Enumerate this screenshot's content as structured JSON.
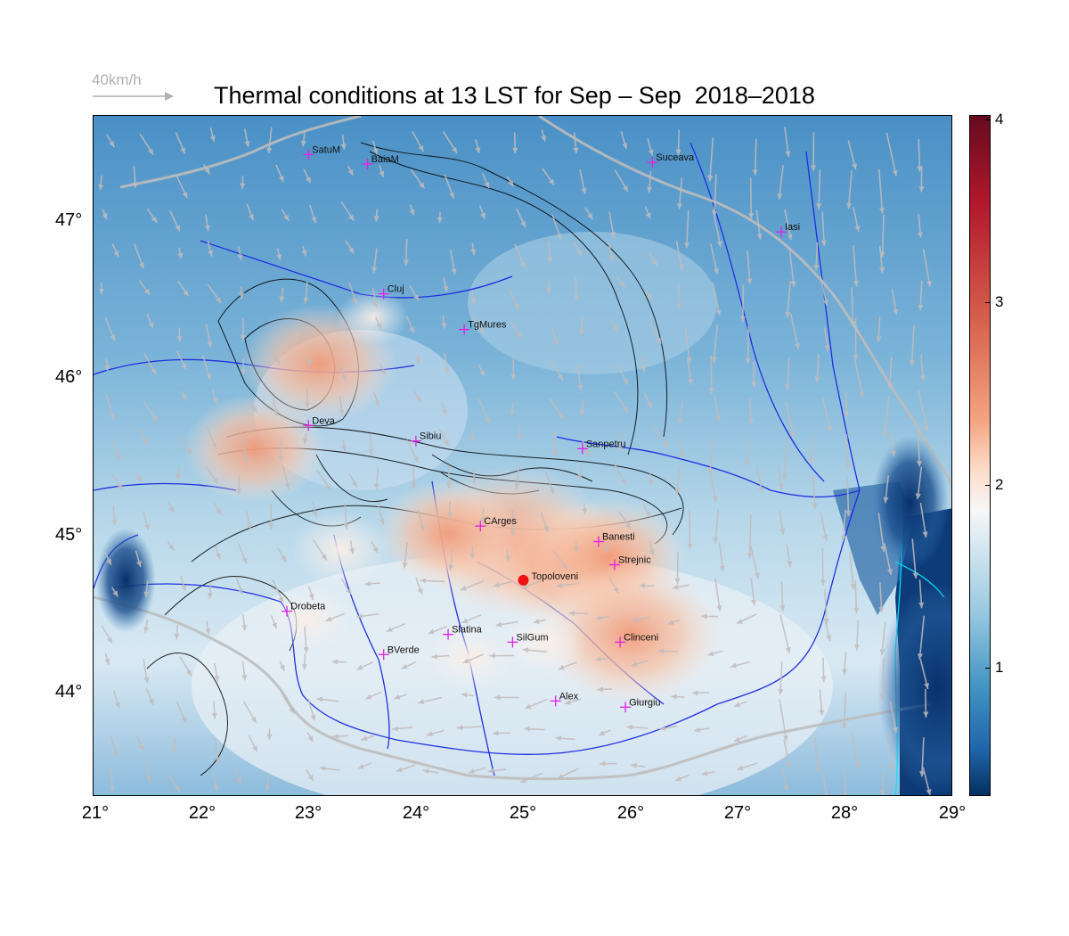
{
  "title": "Thermal conditions at 13 LST for Sep – Sep  2018–2018",
  "wind_scale": {
    "label": "40km/h",
    "color": "#b0b0b0"
  },
  "axes": {
    "lon_ticks": [
      "21°",
      "22°",
      "23°",
      "24°",
      "25°",
      "26°",
      "27°",
      "28°",
      "29°"
    ],
    "lat_ticks": [
      "47°",
      "46°",
      "45°",
      "44°"
    ]
  },
  "colorbar": {
    "ticks": [
      "4",
      "3",
      "2",
      "1"
    ],
    "colormap": "RdBu reversed",
    "colors": {
      "max": "#670a1f",
      "mid": "#f7f7f7",
      "min": "#053061"
    }
  },
  "map": {
    "region": "Romania",
    "lon_range": [
      21,
      29
    ],
    "lat_range": [
      43.3,
      47.7
    ],
    "river_color": "#1f2fe0",
    "border_color": "#bcbcbc",
    "contour_color": "#000000",
    "coast_color": "#00e5ff",
    "station_marker_color": "#e61ee6",
    "highlight_marker_color": "#ee1111"
  },
  "stations": [
    {
      "name": "SatuM",
      "lon": 23.0,
      "lat": 47.45
    },
    {
      "name": "BaiaM",
      "lon": 23.55,
      "lat": 47.39
    },
    {
      "name": "Suceava",
      "lon": 26.2,
      "lat": 47.4
    },
    {
      "name": "Iasi",
      "lon": 27.4,
      "lat": 46.95
    },
    {
      "name": "Cluj",
      "lon": 23.7,
      "lat": 46.55
    },
    {
      "name": "TgMures",
      "lon": 24.45,
      "lat": 46.32
    },
    {
      "name": "Deva",
      "lon": 23.0,
      "lat": 45.7
    },
    {
      "name": "Sibiu",
      "lon": 24.0,
      "lat": 45.6
    },
    {
      "name": "Sanpetru",
      "lon": 25.55,
      "lat": 45.55
    },
    {
      "name": "CArges",
      "lon": 24.6,
      "lat": 45.05
    },
    {
      "name": "Banesti",
      "lon": 25.7,
      "lat": 44.95
    },
    {
      "name": "Strejnic",
      "lon": 25.85,
      "lat": 44.8
    },
    {
      "name": "Drobeta",
      "lon": 22.8,
      "lat": 44.5
    },
    {
      "name": "Slatina",
      "lon": 24.3,
      "lat": 44.35
    },
    {
      "name": "SilGum",
      "lon": 24.9,
      "lat": 44.3
    },
    {
      "name": "Clinceni",
      "lon": 25.9,
      "lat": 44.3
    },
    {
      "name": "BVerde",
      "lon": 23.7,
      "lat": 44.22
    },
    {
      "name": "Alex",
      "lon": 25.3,
      "lat": 43.92
    },
    {
      "name": "Giurgiu",
      "lon": 25.95,
      "lat": 43.88
    }
  ],
  "highlight_station": {
    "name": "Topoloveni",
    "lon": 25.0,
    "lat": 44.7
  },
  "hotspots": [
    {
      "lon": 24.9,
      "lat": 44.95,
      "value": 2.9
    },
    {
      "lon": 25.4,
      "lat": 44.8,
      "value": 2.7
    },
    {
      "lon": 25.8,
      "lat": 44.85,
      "value": 2.6
    },
    {
      "lon": 23.1,
      "lat": 46.1,
      "value": 2.6
    },
    {
      "lon": 22.5,
      "lat": 45.55,
      "value": 2.5
    },
    {
      "lon": 26.0,
      "lat": 44.35,
      "value": 2.8
    },
    {
      "lon": 24.3,
      "lat": 45.0,
      "value": 2.5
    },
    {
      "lon": 23.3,
      "lat": 44.9,
      "value": 2.2
    },
    {
      "lon": 24.5,
      "lat": 44.2,
      "value": 2.1
    },
    {
      "lon": 25.2,
      "lat": 44.3,
      "value": 2.1
    },
    {
      "lon": 23.6,
      "lat": 46.4,
      "value": 2.0
    },
    {
      "lon": 23.0,
      "lat": 44.45,
      "value": 2.1
    }
  ],
  "cold_spots": [
    {
      "lon": 28.85,
      "lat": 44.0,
      "value": 0.3
    },
    {
      "lon": 28.6,
      "lat": 45.2,
      "value": 0.8
    },
    {
      "lon": 21.3,
      "lat": 44.7,
      "value": 1.0
    }
  ]
}
